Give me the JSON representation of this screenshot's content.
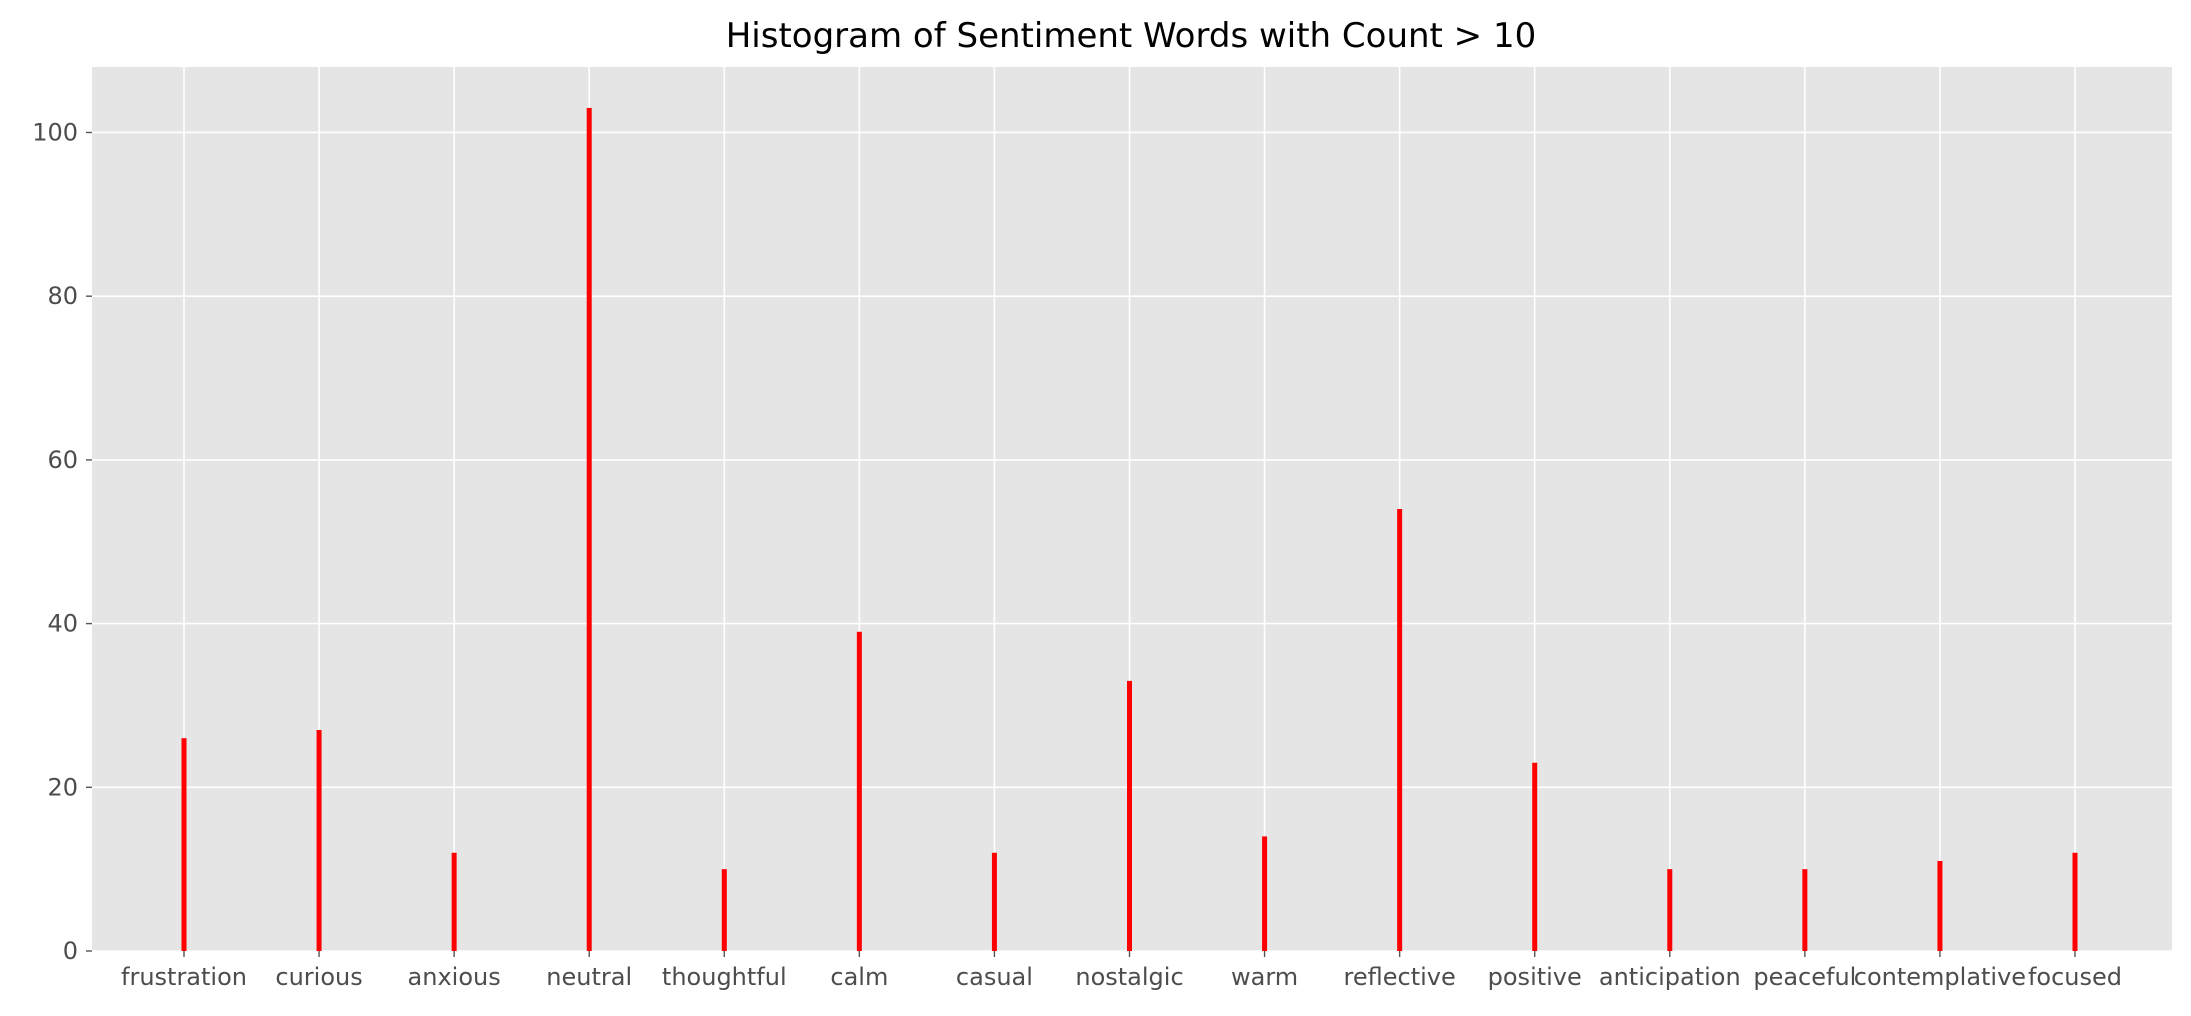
{
  "chart_data": {
    "type": "bar",
    "title": "Histogram of Sentiment Words with Count > 10",
    "xlabel": "",
    "ylabel": "",
    "categories": [
      "frustration",
      "curious",
      "anxious",
      "neutral",
      "thoughtful",
      "calm",
      "casual",
      "nostalgic",
      "warm",
      "reflective",
      "positive",
      "anticipation",
      "peaceful",
      "contemplative",
      "focused"
    ],
    "values": [
      26,
      27,
      12,
      103,
      10,
      39,
      12,
      33,
      14,
      54,
      23,
      10,
      10,
      11,
      12
    ],
    "ylim": [
      0,
      108
    ],
    "yticks": [
      0,
      20,
      40,
      60,
      80,
      100
    ],
    "grid": true,
    "legend": "none",
    "colors": {
      "bar": "#ff0000",
      "plot_background": "#e5e5e5",
      "grid": "#ffffff"
    }
  }
}
